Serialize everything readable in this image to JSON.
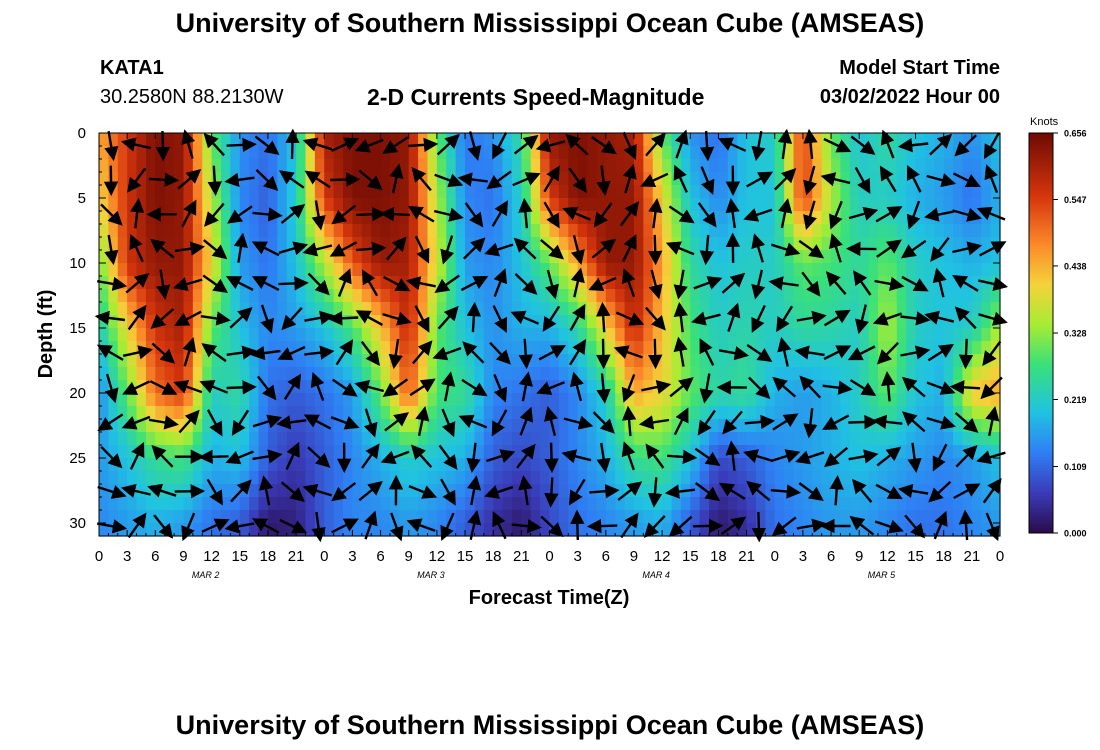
{
  "header": {
    "title": "University of Southern Mississippi Ocean Cube (AMSEAS)",
    "station_id": "KATA1",
    "station_coords": "30.2580N  88.2130W",
    "chart_subtitle": "2-D Currents Speed-Magnitude",
    "model_start_label": "Model Start Time",
    "model_start_value": "03/02/2022 Hour 00"
  },
  "footer": {
    "repeated_title": "University of Southern Mississippi Ocean Cube (AMSEAS)"
  },
  "chart_data": {
    "type": "heatmap",
    "title": "2-D Currents Speed-Magnitude",
    "xlabel": "Forecast Time(Z)",
    "ylabel": "Depth (ft)",
    "xlim": [
      0,
      96
    ],
    "ylim": [
      0,
      31
    ],
    "x_tick_labels": [
      "0",
      "3",
      "6",
      "9",
      "12",
      "15",
      "18",
      "21",
      "0",
      "3",
      "6",
      "9",
      "12",
      "15",
      "18",
      "21",
      "0",
      "3",
      "6",
      "9",
      "12",
      "15",
      "18",
      "21",
      "0",
      "3",
      "6",
      "9",
      "12",
      "15",
      "18",
      "21",
      "0"
    ],
    "y_ticks": [
      0,
      5,
      10,
      15,
      20,
      25,
      30
    ],
    "day_labels": [
      {
        "text": "MAR 2",
        "hour": 12
      },
      {
        "text": "MAR 3",
        "hour": 36
      },
      {
        "text": "MAR 4",
        "hour": 60
      },
      {
        "text": "MAR 5",
        "hour": 84
      }
    ],
    "colorbar": {
      "unit": "Knots",
      "min": 0.0,
      "max": 0.656,
      "tick_values": [
        "0.656",
        "0.547",
        "0.438",
        "0.328",
        "0.219",
        "0.109",
        "0.000"
      ]
    },
    "speed_series_knots": {
      "depth_levels_ft": [
        0,
        5,
        10,
        15,
        20,
        25,
        30
      ],
      "times_hours": [
        0,
        3,
        6,
        9,
        12,
        15,
        18,
        21,
        24,
        27,
        30,
        33,
        36,
        39,
        42,
        45,
        48,
        51,
        54,
        57,
        60,
        63,
        66,
        69,
        72,
        75,
        78,
        81,
        84,
        87,
        90,
        93,
        96
      ],
      "values": [
        [
          0.45,
          0.55,
          0.64,
          0.62,
          0.3,
          0.15,
          0.12,
          0.2,
          0.6,
          0.64,
          0.64,
          0.62,
          0.3,
          0.12,
          0.15,
          0.25,
          0.62,
          0.64,
          0.62,
          0.6,
          0.3,
          0.15,
          0.12,
          0.2,
          0.22,
          0.55,
          0.3,
          0.2,
          0.25,
          0.2,
          0.18,
          0.15,
          0.2
        ],
        [
          0.4,
          0.56,
          0.64,
          0.62,
          0.35,
          0.14,
          0.1,
          0.22,
          0.55,
          0.64,
          0.64,
          0.62,
          0.35,
          0.14,
          0.12,
          0.22,
          0.55,
          0.64,
          0.62,
          0.62,
          0.4,
          0.2,
          0.14,
          0.2,
          0.2,
          0.55,
          0.35,
          0.22,
          0.22,
          0.18,
          0.16,
          0.12,
          0.18
        ],
        [
          0.3,
          0.56,
          0.62,
          0.62,
          0.4,
          0.16,
          0.12,
          0.2,
          0.35,
          0.52,
          0.62,
          0.6,
          0.38,
          0.16,
          0.14,
          0.2,
          0.3,
          0.45,
          0.62,
          0.62,
          0.45,
          0.25,
          0.2,
          0.22,
          0.22,
          0.3,
          0.28,
          0.25,
          0.3,
          0.22,
          0.2,
          0.18,
          0.2
        ],
        [
          0.22,
          0.4,
          0.56,
          0.6,
          0.3,
          0.2,
          0.14,
          0.16,
          0.2,
          0.28,
          0.42,
          0.58,
          0.3,
          0.2,
          0.15,
          0.18,
          0.18,
          0.24,
          0.4,
          0.58,
          0.42,
          0.28,
          0.22,
          0.24,
          0.22,
          0.25,
          0.24,
          0.22,
          0.35,
          0.22,
          0.2,
          0.22,
          0.35
        ],
        [
          0.14,
          0.3,
          0.5,
          0.55,
          0.22,
          0.25,
          0.12,
          0.1,
          0.12,
          0.16,
          0.3,
          0.52,
          0.28,
          0.26,
          0.14,
          0.12,
          0.1,
          0.14,
          0.22,
          0.45,
          0.4,
          0.3,
          0.24,
          0.26,
          0.18,
          0.16,
          0.18,
          0.22,
          0.3,
          0.2,
          0.18,
          0.42,
          0.45
        ],
        [
          0.16,
          0.2,
          0.26,
          0.28,
          0.18,
          0.2,
          0.1,
          0.06,
          0.1,
          0.14,
          0.18,
          0.22,
          0.2,
          0.18,
          0.1,
          0.08,
          0.1,
          0.14,
          0.18,
          0.26,
          0.28,
          0.2,
          0.08,
          0.1,
          0.14,
          0.16,
          0.18,
          0.2,
          0.18,
          0.16,
          0.14,
          0.16,
          0.2
        ],
        [
          0.14,
          0.16,
          0.18,
          0.16,
          0.12,
          0.1,
          0.02,
          0.03,
          0.1,
          0.14,
          0.14,
          0.16,
          0.14,
          0.1,
          0.05,
          0.02,
          0.08,
          0.12,
          0.14,
          0.16,
          0.18,
          0.1,
          0.02,
          0.05,
          0.12,
          0.14,
          0.16,
          0.16,
          0.14,
          0.12,
          0.12,
          0.14,
          0.16
        ]
      ]
    },
    "arrows_present": true,
    "arrow_description": "Black arrows show current direction at each time/depth grid point"
  },
  "colors": {
    "low": "#2a0b4a",
    "mid": "#39d35a",
    "high": "#7a0a04",
    "axis": "#000000",
    "arrow": "#000000"
  }
}
